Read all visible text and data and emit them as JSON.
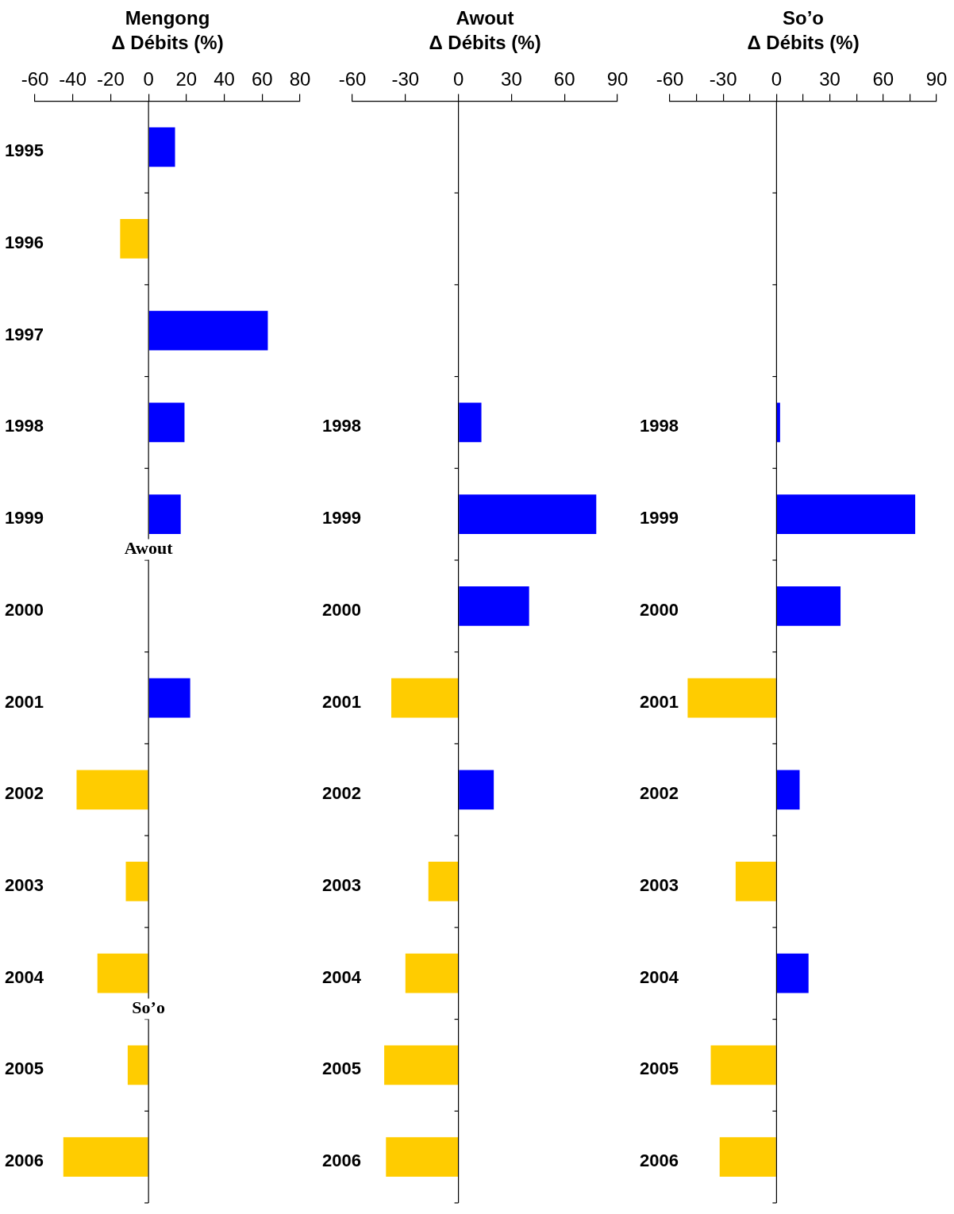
{
  "chart_data": [
    {
      "type": "bar",
      "orientation": "horizontal",
      "title": "Mengong",
      "xlabel": "Δ Débits (%)",
      "categories": [
        "1995",
        "1996",
        "1997",
        "1998",
        "1999",
        "2000",
        "2001",
        "2002",
        "2003",
        "2004",
        "2005",
        "2006"
      ],
      "values": [
        14,
        -15,
        63,
        19,
        17,
        null,
        22,
        -38,
        -12,
        -27,
        -11,
        -45
      ],
      "colors": [
        "#0000ff",
        "#ffcc00",
        "#0000ff",
        "#0000ff",
        "#0000ff",
        "#0000ff",
        "#0000ff",
        "#ffcc00",
        "#ffcc00",
        "#ffcc00",
        "#ffcc00",
        "#ffcc00"
      ],
      "xlim": [
        -60,
        80
      ],
      "xticks": [
        -60,
        -40,
        -20,
        0,
        20,
        40,
        60,
        80
      ],
      "annotations": [
        "Awout",
        "So’o"
      ]
    },
    {
      "type": "bar",
      "orientation": "horizontal",
      "title": "Awout",
      "xlabel": "Δ Débits (%)",
      "categories": [
        null,
        null,
        null,
        "1998",
        "1999",
        "2000",
        "2001",
        "2002",
        "2003",
        "2004",
        "2005",
        "2006"
      ],
      "values": [
        null,
        null,
        null,
        13,
        78,
        40,
        -38,
        20,
        -17,
        -30,
        -42,
        -41
      ],
      "colors": [
        "#0000ff",
        "#0000ff",
        "#0000ff",
        "#0000ff",
        "#0000ff",
        "#0000ff",
        "#ffcc00",
        "#0000ff",
        "#ffcc00",
        "#ffcc00",
        "#ffcc00",
        "#ffcc00"
      ],
      "xlim": [
        -60,
        90
      ],
      "xticks": [
        -60,
        -30,
        0,
        30,
        60,
        90
      ]
    },
    {
      "type": "bar",
      "orientation": "horizontal",
      "title": "So’o",
      "xlabel": "Δ Débits (%)",
      "categories": [
        null,
        null,
        null,
        "1998",
        "1999",
        "2000",
        "2001",
        "2002",
        "2003",
        "2004",
        "2005",
        "2006"
      ],
      "values": [
        null,
        null,
        null,
        2,
        78,
        36,
        -50,
        13,
        -23,
        18,
        -37,
        -32
      ],
      "colors": [
        "#0000ff",
        "#0000ff",
        "#0000ff",
        "#0000ff",
        "#0000ff",
        "#0000ff",
        "#ffcc00",
        "#0000ff",
        "#ffcc00",
        "#0000ff",
        "#ffcc00",
        "#ffcc00"
      ],
      "xlim": [
        -60,
        90
      ],
      "xticks": [
        -60,
        {
          "value": -45,
          "label": null
        },
        -30,
        {
          "value": -15,
          "label": null
        },
        0,
        {
          "value": 15,
          "label": null
        },
        30,
        {
          "value": 45,
          "label": null
        },
        60,
        {
          "value": 75,
          "label": null
        },
        90
      ]
    }
  ]
}
